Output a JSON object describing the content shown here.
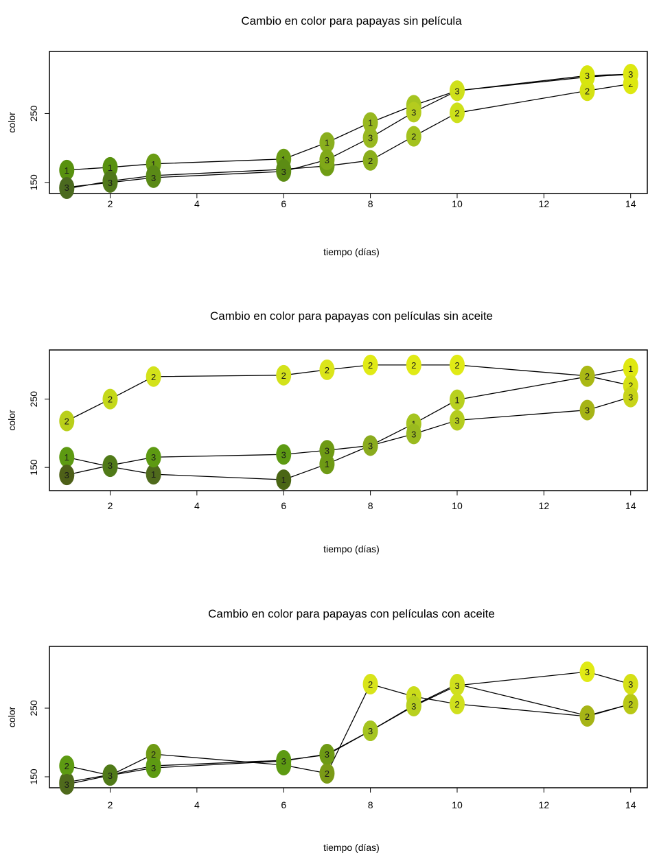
{
  "chart_data": [
    {
      "type": "line",
      "title": "Cambio en color para papayas sin película",
      "xlabel": "tiempo (días)",
      "ylabel": "color",
      "x_ticks": [
        2,
        4,
        6,
        8,
        10,
        12,
        14
      ],
      "y_ticks": [
        150,
        250
      ],
      "xlim": [
        0.6,
        14.4
      ],
      "ylim": [
        134,
        340
      ],
      "grid": false,
      "x": [
        1,
        2,
        3,
        6,
        7,
        8,
        9,
        10,
        13,
        14
      ],
      "series": [
        {
          "name": "1",
          "values": [
            168,
            172,
            177,
            184,
            208,
            237,
            262,
            283,
            303,
            307
          ],
          "colors": [
            "#58910f",
            "#58910f",
            "#6a9c14",
            "#6a9c14",
            "#8aaf1e",
            "#98b820",
            "#a5c420",
            "#cfe01a",
            "#d7e50f",
            "#dde811"
          ]
        },
        {
          "name": "2",
          "values": [
            141,
            152,
            160,
            169,
            174,
            182,
            217,
            251,
            283,
            293
          ],
          "colors": [
            "#4b6a1f",
            "#50781a",
            "#5a8a16",
            "#5c8c14",
            "#6f9c14",
            "#8aae1c",
            "#a3c21e",
            "#cde01a",
            "#d5e213",
            "#dde811"
          ]
        },
        {
          "name": "3",
          "values": [
            143,
            150,
            157,
            166,
            183,
            215,
            252,
            283,
            305,
            307
          ],
          "colors": [
            "#4b6a1f",
            "#50781a",
            "#5a8a16",
            "#5c8c14",
            "#80a818",
            "#98b820",
            "#b4cc1e",
            "#cfe01a",
            "#d7e50f",
            "#dde811"
          ]
        }
      ]
    },
    {
      "type": "line",
      "title": "Cambio en color para papayas con películas sin aceite",
      "xlabel": "tiempo (días)",
      "ylabel": "color",
      "x_ticks": [
        2,
        4,
        6,
        8,
        10,
        12,
        14
      ],
      "y_ticks": [
        150,
        250
      ],
      "xlim": [
        0.6,
        14.4
      ],
      "ylim": [
        116,
        322
      ],
      "grid": false,
      "x": [
        1,
        2,
        3,
        6,
        7,
        8,
        9,
        10,
        13,
        14
      ],
      "series": [
        {
          "name": "1",
          "values": [
            165,
            151,
            140,
            132,
            155,
            182,
            214,
            249,
            283,
            295
          ],
          "colors": [
            "#5d9a12",
            "#507a18",
            "#4f6a1c",
            "#4a6614",
            "#6e9a14",
            "#8aab1e",
            "#a5c420",
            "#b8d01e",
            "#aab814",
            "#dfe811"
          ]
        },
        {
          "name": "2",
          "values": [
            218,
            250,
            283,
            285,
            293,
            300,
            300,
            300,
            284,
            270
          ],
          "colors": [
            "#b9cf1a",
            "#c4d81a",
            "#d3e21a",
            "#d3e21a",
            "#dbe51a",
            "#e0ea15",
            "#e0ea15",
            "#e0ea15",
            "#aab814",
            "#d5e016"
          ]
        },
        {
          "name": "3",
          "values": [
            139,
            153,
            165,
            169,
            175,
            182,
            199,
            219,
            234,
            253
          ],
          "colors": [
            "#4e6018",
            "#507a18",
            "#5d9a12",
            "#5d9a12",
            "#6e9a14",
            "#8aab1e",
            "#9aba1e",
            "#b4cc1e",
            "#a6b416",
            "#c8d418"
          ]
        }
      ]
    },
    {
      "type": "line",
      "title": "Cambio en color para papayas con películas con aceite",
      "xlabel": "tiempo (días)",
      "ylabel": "color",
      "x_ticks": [
        2,
        4,
        6,
        8,
        10,
        12,
        14
      ],
      "y_ticks": [
        150,
        250
      ],
      "xlim": [
        0.6,
        14.4
      ],
      "ylim": [
        134,
        340
      ],
      "grid": false,
      "x": [
        1,
        2,
        3,
        6,
        7,
        8,
        9,
        10,
        13,
        14
      ],
      "series": [
        {
          "name": "1",
          "values": [
            142,
            153,
            166,
            174,
            182,
            217,
            254,
            285,
            239,
            256
          ],
          "colors": [
            "#4f6a1c",
            "#507a18",
            "#5d9a12",
            "#5d9a12",
            "#6e9a14",
            "#a5c420",
            "#b8d01e",
            "#d0e01c",
            "#a6b416",
            "#b8c816"
          ]
        },
        {
          "name": "2",
          "values": [
            166,
            152,
            183,
            167,
            155,
            285,
            267,
            256,
            238,
            256
          ],
          "colors": [
            "#5d9a12",
            "#507a18",
            "#6e9a14",
            "#5d9a12",
            "#7a9a16",
            "#d8e41a",
            "#cadc1a",
            "#d0e01c",
            "#a6b416",
            "#b8c816"
          ]
        },
        {
          "name": "3",
          "values": [
            139,
            152,
            163,
            173,
            183,
            217,
            253,
            283,
            303,
            285
          ],
          "colors": [
            "#4f6a1c",
            "#507a18",
            "#5d9a12",
            "#5d9a12",
            "#6e9a14",
            "#a5c420",
            "#b8d01e",
            "#d0e01c",
            "#e0ea15",
            "#d5e016"
          ]
        }
      ]
    }
  ]
}
